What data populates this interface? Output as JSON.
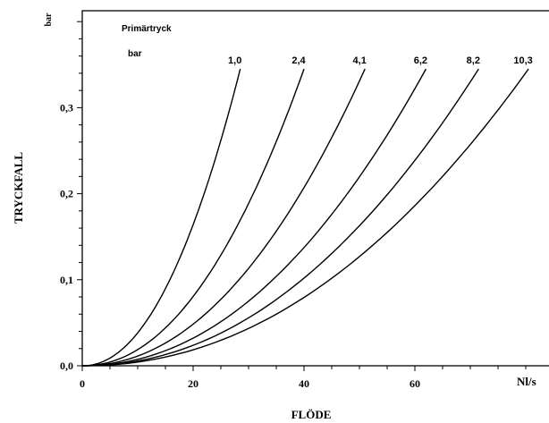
{
  "chart_data": {
    "type": "line",
    "xlabel": "FLÖDE",
    "ylabel": "TRYCKFALL",
    "x_unit": "Nl/s",
    "y_unit": "bar",
    "legend_title_line1": "Primärtryck",
    "legend_title_line2": "bar",
    "xlim": [
      0,
      85
    ],
    "ylim": [
      0,
      0.4
    ],
    "x_ticks": [
      0,
      20,
      40,
      60
    ],
    "x_tick_labels": [
      "0",
      "20",
      "40",
      "60"
    ],
    "y_ticks": [
      0,
      0.1,
      0.2,
      0.3
    ],
    "y_tick_labels": [
      "0,0",
      "0,1",
      "0,2",
      "0,3"
    ],
    "grid": false,
    "series": [
      {
        "name": "1,0",
        "end": [
          28.5,
          0.345
        ]
      },
      {
        "name": "2,4",
        "end": [
          40.0,
          0.345
        ]
      },
      {
        "name": "4,1",
        "end": [
          51.0,
          0.345
        ]
      },
      {
        "name": "6,2",
        "end": [
          62.0,
          0.345
        ]
      },
      {
        "name": "8,2",
        "end": [
          71.5,
          0.345
        ]
      },
      {
        "name": "10,3",
        "end": [
          80.5,
          0.345
        ]
      }
    ]
  }
}
